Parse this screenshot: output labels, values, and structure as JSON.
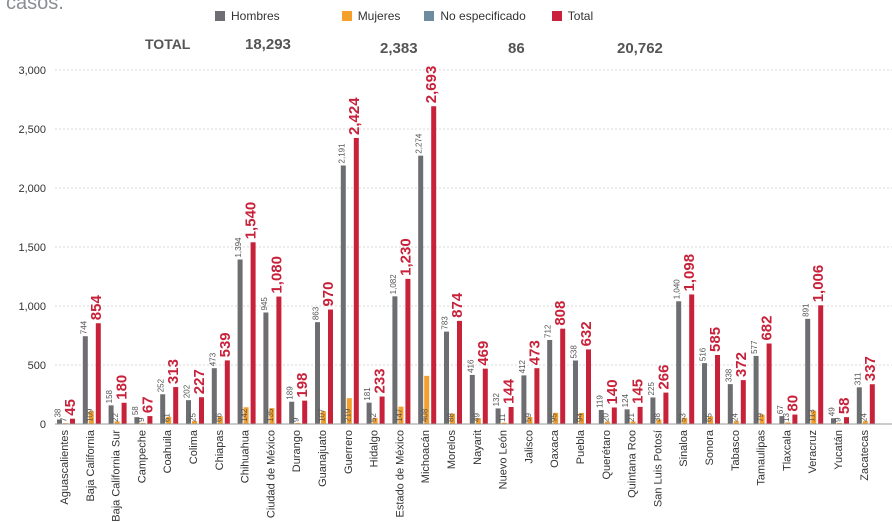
{
  "intro_text": "casos.",
  "colors": {
    "hombres": "#6d6e71",
    "mujeres": "#f5a02c",
    "no_especificado": "#6e8ca0",
    "total": "#c8213a",
    "grid": "#d8d8d8",
    "axis_text": "#333333"
  },
  "totals": {
    "label": "TOTAL",
    "hombres": "18,293",
    "mujeres": "2,383",
    "no_especificado": "86",
    "total": "20,762"
  },
  "chart_data": {
    "type": "bar",
    "ylim": [
      0,
      3000
    ],
    "yticks": [
      "0",
      "500",
      "1,000",
      "1,500",
      "2,000",
      "2,500",
      "3,000"
    ],
    "grid": true,
    "legend_position": "top",
    "series": [
      {
        "name": "Hombres",
        "color": "#6d6e71"
      },
      {
        "name": "Mujeres",
        "color": "#f5a02c"
      },
      {
        "name": "No especificado",
        "color": "#6e8ca0"
      },
      {
        "name": "Total",
        "color": "#c8213a"
      }
    ],
    "rows": [
      {
        "state": "Aguascalientes",
        "h": 38,
        "hl": "38",
        "m": 7,
        "ml": "7",
        "t": 45,
        "tl": "45"
      },
      {
        "state": "Baja California",
        "h": 744,
        "hl": "744",
        "m": 109,
        "ml": "109",
        "t": 854,
        "tl": "854"
      },
      {
        "state": "Baja California Sur",
        "h": 158,
        "hl": "158",
        "m": 22,
        "ml": "22",
        "t": 180,
        "tl": "180"
      },
      {
        "state": "Campeche",
        "h": 58,
        "hl": "58",
        "m": 9,
        "ml": "9",
        "t": 67,
        "tl": "67"
      },
      {
        "state": "Coahuila",
        "h": 252,
        "hl": "252",
        "m": 61,
        "ml": "61",
        "t": 313,
        "tl": "313"
      },
      {
        "state": "Colima",
        "h": 202,
        "hl": "202",
        "m": 25,
        "ml": "25",
        "t": 227,
        "tl": "227"
      },
      {
        "state": "Chiapas",
        "h": 473,
        "hl": "473",
        "m": 66,
        "ml": "66",
        "t": 539,
        "tl": "539"
      },
      {
        "state": "Chihuahua",
        "h": 1394,
        "hl": "1,394",
        "m": 142,
        "ml": "142",
        "t": 1540,
        "tl": "1,540"
      },
      {
        "state": "Ciudad de México",
        "h": 945,
        "hl": "945",
        "m": 135,
        "ml": "135",
        "t": 1080,
        "tl": "1,080"
      },
      {
        "state": "Durango",
        "h": 189,
        "hl": "189",
        "m": 9,
        "ml": "9",
        "t": 198,
        "tl": "198"
      },
      {
        "state": "Guanajuato",
        "h": 863,
        "hl": "863",
        "m": 107,
        "ml": "107",
        "t": 970,
        "tl": "970"
      },
      {
        "state": "Guerrero",
        "h": 2191,
        "hl": "2,191",
        "m": 219,
        "ml": "219",
        "t": 2424,
        "tl": "2,424"
      },
      {
        "state": "Hidalgo",
        "h": 181,
        "hl": "181",
        "m": 52,
        "ml": "52",
        "t": 233,
        "tl": "233"
      },
      {
        "state": "Estado de México",
        "h": 1082,
        "hl": "1,082",
        "m": 147,
        "ml": "147",
        "t": 1230,
        "tl": "1,230"
      },
      {
        "state": "Michoacán",
        "h": 2274,
        "hl": "2,274",
        "m": 408,
        "ml": "408",
        "t": 2693,
        "tl": "2,693"
      },
      {
        "state": "Morelos",
        "h": 783,
        "hl": "783",
        "m": 88,
        "ml": "88",
        "t": 874,
        "tl": "874"
      },
      {
        "state": "Nayarit",
        "h": 416,
        "hl": "416",
        "m": 49,
        "ml": "49",
        "t": 469,
        "tl": "469"
      },
      {
        "state": "Nuevo León",
        "h": 132,
        "hl": "132",
        "m": 11,
        "ml": "11",
        "t": 144,
        "tl": "144"
      },
      {
        "state": "Jalisco",
        "h": 412,
        "hl": "412",
        "m": 59,
        "ml": "59",
        "t": 473,
        "tl": "473"
      },
      {
        "state": "Oaxaca",
        "h": 712,
        "hl": "712",
        "m": 95,
        "ml": "95",
        "t": 808,
        "tl": "808"
      },
      {
        "state": "Puebla",
        "h": 538,
        "hl": "538",
        "m": 94,
        "ml": "94",
        "t": 632,
        "tl": "632"
      },
      {
        "state": "Querétaro",
        "h": 119,
        "hl": "119",
        "m": 20,
        "ml": "20",
        "t": 140,
        "tl": "140"
      },
      {
        "state": "Quintana Roo",
        "h": 124,
        "hl": "124",
        "m": 21,
        "ml": "21",
        "t": 145,
        "tl": "145"
      },
      {
        "state": "San Luis Potosí",
        "h": 225,
        "hl": "225",
        "m": 38,
        "ml": "38",
        "t": 266,
        "tl": "266"
      },
      {
        "state": "Sinaloa",
        "h": 1040,
        "hl": "1,040",
        "m": 53,
        "ml": "53",
        "t": 1098,
        "tl": "1,098"
      },
      {
        "state": "Sonora",
        "h": 516,
        "hl": "516",
        "m": 65,
        "ml": "65",
        "t": 585,
        "tl": "585"
      },
      {
        "state": "Tabasco",
        "h": 338,
        "hl": "338",
        "m": 24,
        "ml": "24",
        "t": 372,
        "tl": "372"
      },
      {
        "state": "Tamaulipas",
        "h": 577,
        "hl": "577",
        "m": 79,
        "ml": "79",
        "t": 682,
        "tl": "682"
      },
      {
        "state": "Tlaxcala",
        "h": 67,
        "hl": "67",
        "m": 13,
        "ml": "13",
        "t": 80,
        "tl": "80"
      },
      {
        "state": "Veracruz",
        "h": 891,
        "hl": "891",
        "m": 113,
        "ml": "113",
        "t": 1006,
        "tl": "1,006"
      },
      {
        "state": "Yucatán",
        "h": 49,
        "hl": "49",
        "m": 9,
        "ml": "9",
        "t": 58,
        "tl": "58"
      },
      {
        "state": "Zacatecas",
        "h": 311,
        "hl": "311",
        "m": 24,
        "ml": "24",
        "t": 337,
        "tl": "337"
      }
    ]
  }
}
